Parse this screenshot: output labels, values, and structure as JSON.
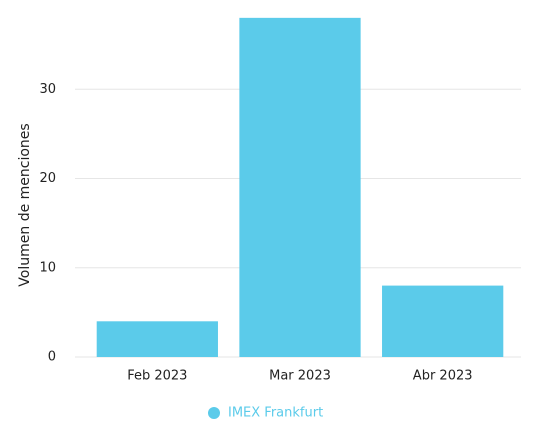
{
  "chart_data": {
    "type": "bar",
    "y_label": "Volumen de menciones",
    "categories": [
      "Feb 2023",
      "Mar 2023",
      "Abr 2023"
    ],
    "series": [
      {
        "name": "IMEX Frankfurt",
        "color": "#5bcbea",
        "values": [
          4,
          38,
          8
        ]
      }
    ],
    "ylim": [
      0,
      40
    ],
    "yticks": [
      0,
      10,
      20,
      30
    ],
    "grid": true,
    "legend": "bottom"
  }
}
